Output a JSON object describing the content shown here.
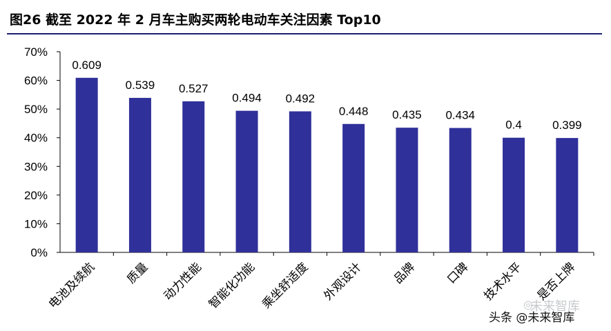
{
  "header": {
    "title": "图26 截至 2022 年 2 月车主购买两轮电动车关注因素 Top10"
  },
  "chart_data": {
    "type": "bar",
    "title": "",
    "xlabel": "",
    "ylabel": "",
    "ylim": [
      0,
      0.7
    ],
    "yticks": [
      "0%",
      "10%",
      "20%",
      "30%",
      "40%",
      "50%",
      "60%",
      "70%"
    ],
    "ytick_values": [
      0,
      0.1,
      0.2,
      0.3,
      0.4,
      0.5,
      0.6,
      0.7
    ],
    "categories": [
      "电池及续航",
      "质量",
      "动力性能",
      "智能化功能",
      "乘坐舒适度",
      "外观设计",
      "品牌",
      "口碑",
      "技术水平",
      "是否上牌"
    ],
    "values": [
      0.609,
      0.539,
      0.527,
      0.494,
      0.492,
      0.448,
      0.435,
      0.434,
      0.4,
      0.399
    ],
    "value_labels": [
      "0.609",
      "0.539",
      "0.527",
      "0.494",
      "0.492",
      "0.448",
      "0.435",
      "0.434",
      "0.4",
      "0.399"
    ],
    "bar_color": "#30309a",
    "grid": false
  },
  "watermark": {
    "text": "未来智库",
    "icon": "wechat-icon"
  },
  "credit": {
    "text": "头条 @未来智库"
  }
}
